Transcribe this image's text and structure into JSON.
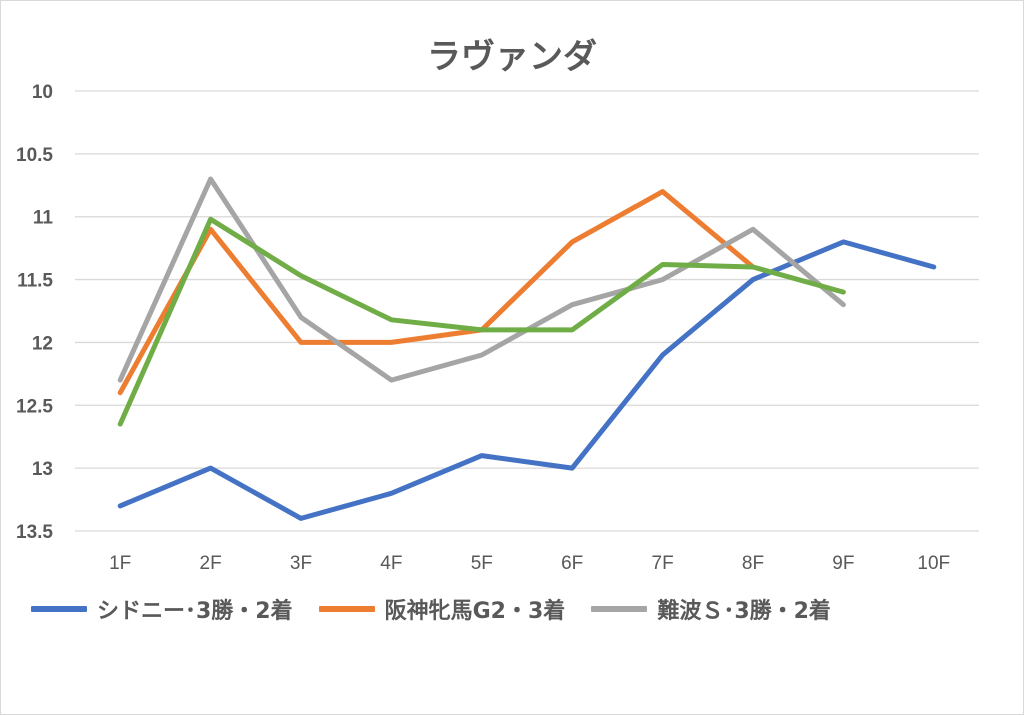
{
  "chart_data": {
    "type": "line",
    "title": "ラヴァンダ",
    "xlabel": "",
    "ylabel": "",
    "y_reversed": true,
    "ylim": [
      10,
      13.5
    ],
    "y_ticks": [
      "10",
      "10.5",
      "11",
      "11.5",
      "12",
      "12.5",
      "13",
      "13.5"
    ],
    "categories": [
      "1F",
      "2F",
      "3F",
      "4F",
      "5F",
      "6F",
      "7F",
      "8F",
      "9F",
      "10F"
    ],
    "grid": true,
    "legend_position": "bottom",
    "series": [
      {
        "name": "シドニー･3勝・2着",
        "color": "#4472c4",
        "values": [
          13.3,
          13.0,
          13.4,
          13.2,
          12.9,
          13.0,
          12.1,
          11.5,
          11.2,
          11.4
        ]
      },
      {
        "name": "阪神牝馬G2・3着",
        "color": "#ed7d31",
        "values": [
          12.4,
          11.1,
          12.0,
          12.0,
          11.9,
          11.2,
          10.8,
          11.4,
          null,
          null
        ]
      },
      {
        "name": "難波Ｓ･3勝・2着",
        "color": "#a5a5a5",
        "values": [
          12.3,
          10.7,
          11.8,
          12.3,
          12.1,
          11.7,
          11.5,
          11.1,
          11.7,
          null
        ]
      },
      {
        "name": "",
        "color": "#70ad47",
        "values": [
          12.65,
          11.02,
          11.47,
          11.82,
          11.9,
          11.9,
          11.38,
          11.4,
          11.6,
          null
        ]
      }
    ]
  }
}
